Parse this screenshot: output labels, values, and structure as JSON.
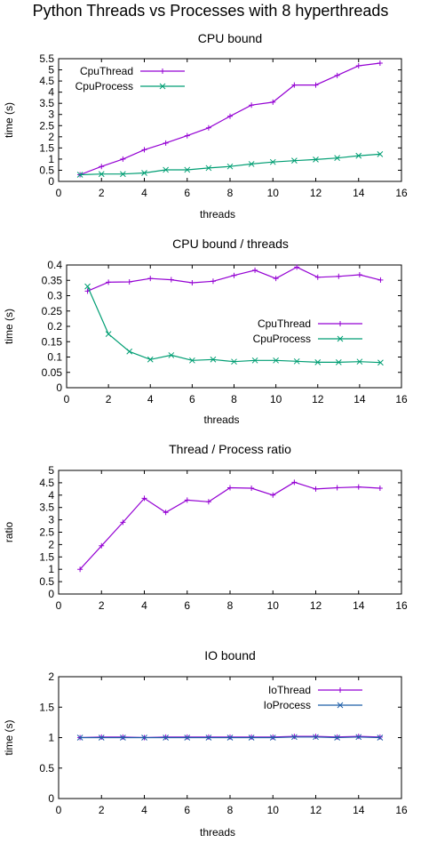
{
  "page": {
    "title": "Python Threads vs Processes with 8 hyperthreads"
  },
  "colors": {
    "thread": "#9400d3",
    "process": "#009e73",
    "io_process": "#1f5fa8",
    "axis": "#000000"
  },
  "chart_data": [
    {
      "type": "line",
      "title": "CPU bound",
      "xlabel": "threads",
      "ylabel": "time (s)",
      "xlim": [
        0,
        16
      ],
      "ylim": [
        0,
        5.5
      ],
      "xticks": [
        "0",
        "2",
        "4",
        "6",
        "8",
        "10",
        "12",
        "14",
        "16"
      ],
      "yticks": [
        "0",
        "0.5",
        "1",
        "1.5",
        "2",
        "2.5",
        "3",
        "3.5",
        "4",
        "4.5",
        "5",
        "5.5"
      ],
      "legend_position": "top-left",
      "x": [
        1,
        2,
        3,
        4,
        5,
        6,
        7,
        8,
        9,
        10,
        11,
        12,
        13,
        14,
        15
      ],
      "series": [
        {
          "name": "CpuThread",
          "marker": "plus",
          "values": [
            0.3,
            0.67,
            1.0,
            1.42,
            1.72,
            2.05,
            2.4,
            2.92,
            3.42,
            3.55,
            4.32,
            4.32,
            4.75,
            5.18,
            5.3
          ]
        },
        {
          "name": "CpuProcess",
          "marker": "cross",
          "values": [
            0.3,
            0.33,
            0.33,
            0.38,
            0.52,
            0.52,
            0.6,
            0.67,
            0.78,
            0.87,
            0.93,
            0.98,
            1.05,
            1.15,
            1.22
          ]
        }
      ]
    },
    {
      "type": "line",
      "title": "CPU bound / threads",
      "xlabel": "threads",
      "ylabel": "time (s)",
      "xlim": [
        0,
        16
      ],
      "ylim": [
        0,
        0.4
      ],
      "xticks": [
        "0",
        "2",
        "4",
        "6",
        "8",
        "10",
        "12",
        "14",
        "16"
      ],
      "yticks": [
        "0",
        "0.05",
        "0.1",
        "0.15",
        "0.2",
        "0.25",
        "0.3",
        "0.35",
        "0.4"
      ],
      "legend_position": "middle-right",
      "x": [
        1,
        2,
        3,
        4,
        5,
        6,
        7,
        8,
        9,
        10,
        11,
        12,
        13,
        14,
        15
      ],
      "series": [
        {
          "name": "CpuThread",
          "marker": "plus",
          "values": [
            0.315,
            0.344,
            0.345,
            0.356,
            0.352,
            0.342,
            0.347,
            0.366,
            0.383,
            0.356,
            0.393,
            0.36,
            0.363,
            0.368,
            0.351
          ]
        },
        {
          "name": "CpuProcess",
          "marker": "cross",
          "values": [
            0.33,
            0.175,
            0.118,
            0.092,
            0.106,
            0.089,
            0.092,
            0.085,
            0.089,
            0.089,
            0.086,
            0.083,
            0.083,
            0.085,
            0.082
          ]
        }
      ]
    },
    {
      "type": "line",
      "title": "Thread / Process ratio",
      "xlabel": "",
      "ylabel": "ratio",
      "xlim": [
        0,
        16
      ],
      "ylim": [
        0,
        5
      ],
      "xticks": [
        "0",
        "2",
        "4",
        "6",
        "8",
        "10",
        "12",
        "14",
        "16"
      ],
      "yticks": [
        "0",
        "0.5",
        "1",
        "1.5",
        "2",
        "2.5",
        "3",
        "3.5",
        "4",
        "4.5",
        "5"
      ],
      "legend_position": "none",
      "x": [
        1,
        2,
        3,
        4,
        5,
        6,
        7,
        8,
        9,
        10,
        11,
        12,
        13,
        14,
        15
      ],
      "series": [
        {
          "name": "",
          "marker": "plus",
          "values": [
            1.0,
            1.95,
            2.9,
            3.87,
            3.3,
            3.8,
            3.73,
            4.3,
            4.28,
            4.0,
            4.52,
            4.25,
            4.3,
            4.33,
            4.28
          ]
        }
      ]
    },
    {
      "type": "line",
      "title": "IO bound",
      "xlabel": "threads",
      "ylabel": "time (s)",
      "xlim": [
        0,
        16
      ],
      "ylim": [
        0,
        2
      ],
      "xticks": [
        "0",
        "2",
        "4",
        "6",
        "8",
        "10",
        "12",
        "14",
        "16"
      ],
      "yticks": [
        "0",
        "0.5",
        "1",
        "1.5",
        "2"
      ],
      "legend_position": "top-right",
      "x": [
        1,
        2,
        3,
        4,
        5,
        6,
        7,
        8,
        9,
        10,
        11,
        12,
        13,
        14,
        15
      ],
      "series": [
        {
          "name": "IoThread",
          "marker": "plus",
          "values": [
            1.0,
            1.01,
            1.01,
            1.0,
            1.01,
            1.01,
            1.01,
            1.01,
            1.01,
            1.01,
            1.02,
            1.02,
            1.01,
            1.02,
            1.01
          ]
        },
        {
          "name": "IoProcess",
          "marker": "cross",
          "values": [
            1.0,
            1.0,
            1.0,
            1.0,
            1.0,
            1.0,
            1.0,
            1.0,
            1.0,
            1.0,
            1.01,
            1.01,
            1.0,
            1.01,
            1.0
          ]
        }
      ]
    }
  ]
}
